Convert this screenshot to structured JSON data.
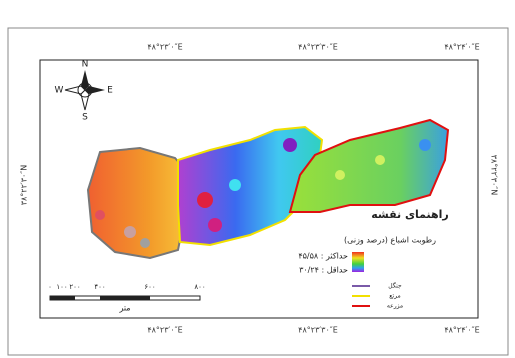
{
  "map": {
    "top_labels": [
      "۴۸°۲۳′۰″E",
      "۴۸°۲۳′۳۰″E",
      "۴۸°۲۴′۰″E"
    ],
    "bottom_labels": [
      "۴۸°۲۳′۰″E",
      "۴۸°۲۳′۳۰″E",
      "۴۸°۲۴′۰″E"
    ],
    "left_label": "۳۸°۲۲′۳۰″N",
    "right_label": "۳۸°۲۲′۳۰″N",
    "compass": {
      "n": "N",
      "s": "S",
      "e": "E",
      "w": "W"
    },
    "legend": {
      "title": "راهنمای نقشه",
      "subtitle": "رطوبت اشباع (درصد وزنی)",
      "max_label": "حداکثر : ۴۵/۵۸",
      "min_label": "حداقل : ۳۰/۲۴",
      "lines": [
        {
          "label": "جنگل",
          "color": "#7a5aa8"
        },
        {
          "label": "مرتع",
          "color": "#f2e000"
        },
        {
          "label": "مزرعه",
          "color": "#e01010"
        }
      ]
    },
    "scale": {
      "ticks": [
        "۰",
        "۱۰۰",
        "۲۰۰",
        "۴۰۰",
        "۶۰۰",
        "۸۰۰"
      ],
      "unit": "متر"
    }
  }
}
